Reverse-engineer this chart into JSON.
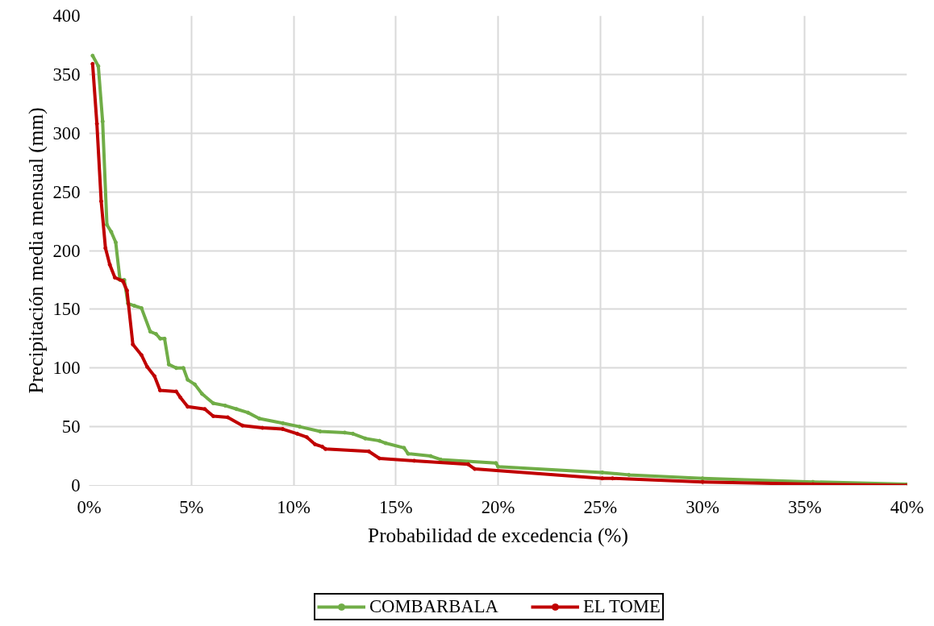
{
  "chart_data": {
    "type": "line",
    "xlabel": "Probabilidad de excedencia (%)",
    "ylabel": "Precipitación media mensual (mm)",
    "xlim": [
      0,
      40
    ],
    "xticks": [
      {
        "value": 0,
        "label": "0%"
      },
      {
        "value": 5,
        "label": "5%"
      },
      {
        "value": 10,
        "label": "10%"
      },
      {
        "value": 15,
        "label": "15%"
      },
      {
        "value": 20,
        "label": "20%"
      },
      {
        "value": 25,
        "label": "25%"
      },
      {
        "value": 30,
        "label": "30%"
      },
      {
        "value": 35,
        "label": "35%"
      },
      {
        "value": 40,
        "label": "40%"
      }
    ],
    "ylim": [
      0,
      400
    ],
    "yticks": [
      0,
      50,
      100,
      150,
      200,
      250,
      300,
      350,
      400
    ],
    "grid": true,
    "legend": "bottom",
    "marker": "circle",
    "line_style": "solid",
    "series": [
      {
        "name": "COMBARBALA",
        "color": "#70ad47",
        "x": [
          0.17,
          0.45,
          0.66,
          0.87,
          1.08,
          1.3,
          1.51,
          1.72,
          1.9,
          2.21,
          2.56,
          2.99,
          3.27,
          3.48,
          3.69,
          3.9,
          4.26,
          4.61,
          4.82,
          5.17,
          5.52,
          6.07,
          6.65,
          7.21,
          7.77,
          8.32,
          9.47,
          10.3,
          11.3,
          12.5,
          12.9,
          13.5,
          14.2,
          14.5,
          15.4,
          15.6,
          16.7,
          17.2,
          19.9,
          20.0,
          25.1,
          26.4,
          30,
          35.4,
          40
        ],
        "values": [
          366,
          357,
          310,
          222,
          216,
          207,
          175,
          175,
          155,
          153,
          151,
          131,
          129,
          125,
          125,
          103,
          100,
          100,
          90,
          86,
          78,
          70,
          68,
          65,
          62,
          57,
          53,
          50,
          46,
          45,
          44,
          40,
          38,
          36,
          32,
          27,
          25,
          22,
          19,
          16,
          11,
          9,
          6,
          3,
          1
        ]
      },
      {
        "name": "EL TOME",
        "color": "#c00000",
        "x": [
          0.17,
          0.38,
          0.59,
          0.8,
          1.01,
          1.26,
          1.65,
          1.85,
          2.14,
          2.56,
          2.84,
          3.2,
          3.47,
          4.26,
          4.46,
          4.82,
          5.66,
          6.07,
          6.78,
          7.5,
          8.48,
          9.47,
          10.18,
          10.65,
          11.05,
          11.4,
          11.56,
          13.68,
          14.2,
          15.9,
          18.54,
          18.86,
          25.1,
          25.6,
          30,
          35.4,
          40
        ],
        "values": [
          359,
          308,
          242,
          202,
          188,
          177,
          174,
          166,
          120,
          111,
          101,
          93,
          81,
          80,
          75,
          67,
          65,
          59,
          58,
          51,
          49,
          48,
          44,
          41,
          35,
          33,
          31,
          29,
          23,
          21,
          18,
          14,
          6,
          6,
          3,
          1,
          0
        ]
      }
    ]
  }
}
